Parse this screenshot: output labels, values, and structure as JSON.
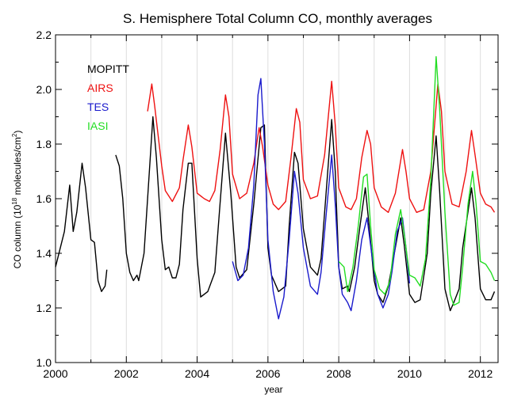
{
  "chart_data": {
    "type": "line",
    "title": "S. Hemisphere Total Column CO, monthly averages",
    "xlabel": "year",
    "ylabel_main": "CO column (10",
    "ylabel_exp": "18",
    "ylabel_mid": " molecules/cm",
    "ylabel_sup2": "2",
    "ylabel_end": ")",
    "xlim": [
      2000,
      2012.5
    ],
    "ylim": [
      1.0,
      2.2
    ],
    "x_ticks": [
      2000,
      2002,
      2004,
      2006,
      2008,
      2010,
      2012
    ],
    "x_tick_labels": [
      "2000",
      "2002",
      "2004",
      "2006",
      "2008",
      "2010",
      "2012"
    ],
    "y_ticks": [
      1.0,
      1.2,
      1.4,
      1.6,
      1.8,
      2.0,
      2.2
    ],
    "y_tick_labels": [
      "1.0",
      "1.2",
      "1.4",
      "1.6",
      "1.8",
      "2.0",
      "2.2"
    ],
    "vertical_year_lines": true,
    "legend_position": "top-left",
    "series": [
      {
        "name": "MOPITT",
        "color": "#000000",
        "segments": [
          [
            [
              2000.0,
              1.35
            ],
            [
              2000.25,
              1.48
            ],
            [
              2000.4,
              1.65
            ],
            [
              2000.5,
              1.48
            ],
            [
              2000.6,
              1.55
            ],
            [
              2000.75,
              1.73
            ],
            [
              2000.85,
              1.64
            ],
            [
              2001.0,
              1.45
            ],
            [
              2001.1,
              1.44
            ],
            [
              2001.2,
              1.3
            ],
            [
              2001.3,
              1.26
            ],
            [
              2001.4,
              1.28
            ],
            [
              2001.45,
              1.34
            ]
          ],
          [
            [
              2001.7,
              1.76
            ],
            [
              2001.8,
              1.72
            ],
            [
              2001.9,
              1.6
            ],
            [
              2002.0,
              1.4
            ],
            [
              2002.1,
              1.33
            ],
            [
              2002.2,
              1.3
            ],
            [
              2002.3,
              1.32
            ],
            [
              2002.35,
              1.3
            ],
            [
              2002.5,
              1.4
            ],
            [
              2002.6,
              1.6
            ],
            [
              2002.75,
              1.9
            ],
            [
              2002.85,
              1.75
            ],
            [
              2003.0,
              1.45
            ],
            [
              2003.1,
              1.34
            ],
            [
              2003.2,
              1.35
            ],
            [
              2003.3,
              1.31
            ],
            [
              2003.4,
              1.31
            ],
            [
              2003.5,
              1.36
            ],
            [
              2003.6,
              1.56
            ],
            [
              2003.75,
              1.73
            ],
            [
              2003.85,
              1.73
            ],
            [
              2004.0,
              1.38
            ],
            [
              2004.1,
              1.24
            ],
            [
              2004.3,
              1.26
            ],
            [
              2004.5,
              1.33
            ],
            [
              2004.6,
              1.5
            ],
            [
              2004.8,
              1.84
            ],
            [
              2004.95,
              1.62
            ],
            [
              2005.1,
              1.35
            ],
            [
              2005.2,
              1.31
            ],
            [
              2005.4,
              1.34
            ],
            [
              2005.6,
              1.58
            ],
            [
              2005.8,
              1.86
            ],
            [
              2005.9,
              1.87
            ],
            [
              2006.0,
              1.42
            ],
            [
              2006.1,
              1.32
            ],
            [
              2006.3,
              1.26
            ],
            [
              2006.5,
              1.28
            ],
            [
              2006.6,
              1.5
            ],
            [
              2006.75,
              1.77
            ],
            [
              2006.85,
              1.73
            ],
            [
              2007.0,
              1.49
            ],
            [
              2007.2,
              1.35
            ],
            [
              2007.4,
              1.32
            ],
            [
              2007.5,
              1.38
            ],
            [
              2007.6,
              1.55
            ],
            [
              2007.8,
              1.89
            ],
            [
              2007.9,
              1.7
            ],
            [
              2008.0,
              1.35
            ],
            [
              2008.1,
              1.27
            ],
            [
              2008.25,
              1.28
            ],
            [
              2008.3,
              1.26
            ],
            [
              2008.45,
              1.35
            ],
            [
              2008.6,
              1.5
            ],
            [
              2008.75,
              1.64
            ],
            [
              2008.85,
              1.51
            ],
            [
              2009.0,
              1.3
            ],
            [
              2009.1,
              1.25
            ],
            [
              2009.25,
              1.22
            ],
            [
              2009.4,
              1.28
            ],
            [
              2009.5,
              1.35
            ],
            [
              2009.75,
              1.53
            ],
            [
              2009.85,
              1.43
            ],
            [
              2010.0,
              1.25
            ],
            [
              2010.15,
              1.22
            ],
            [
              2010.3,
              1.23
            ],
            [
              2010.5,
              1.4
            ],
            [
              2010.6,
              1.62
            ],
            [
              2010.75,
              1.83
            ],
            [
              2010.85,
              1.63
            ],
            [
              2011.0,
              1.27
            ],
            [
              2011.15,
              1.19
            ],
            [
              2011.25,
              1.22
            ],
            [
              2011.4,
              1.27
            ],
            [
              2011.5,
              1.42
            ],
            [
              2011.75,
              1.64
            ],
            [
              2011.85,
              1.53
            ],
            [
              2012.0,
              1.27
            ],
            [
              2012.15,
              1.23
            ],
            [
              2012.3,
              1.23
            ],
            [
              2012.4,
              1.26
            ]
          ]
        ]
      },
      {
        "name": "AIRS",
        "color": "#ee1111",
        "segments": [
          [
            [
              2002.6,
              1.92
            ],
            [
              2002.72,
              2.02
            ],
            [
              2002.8,
              1.94
            ],
            [
              2003.0,
              1.72
            ],
            [
              2003.1,
              1.63
            ],
            [
              2003.3,
              1.59
            ],
            [
              2003.5,
              1.64
            ],
            [
              2003.6,
              1.74
            ],
            [
              2003.75,
              1.87
            ],
            [
              2003.85,
              1.79
            ],
            [
              2004.0,
              1.62
            ],
            [
              2004.2,
              1.6
            ],
            [
              2004.35,
              1.59
            ],
            [
              2004.5,
              1.63
            ],
            [
              2004.65,
              1.78
            ],
            [
              2004.8,
              1.98
            ],
            [
              2004.9,
              1.9
            ],
            [
              2005.0,
              1.69
            ],
            [
              2005.2,
              1.6
            ],
            [
              2005.4,
              1.62
            ],
            [
              2005.6,
              1.73
            ],
            [
              2005.75,
              1.86
            ],
            [
              2005.85,
              1.79
            ],
            [
              2006.0,
              1.65
            ],
            [
              2006.15,
              1.58
            ],
            [
              2006.3,
              1.56
            ],
            [
              2006.5,
              1.59
            ],
            [
              2006.65,
              1.75
            ],
            [
              2006.8,
              1.93
            ],
            [
              2006.9,
              1.88
            ],
            [
              2007.0,
              1.67
            ],
            [
              2007.2,
              1.6
            ],
            [
              2007.4,
              1.61
            ],
            [
              2007.6,
              1.76
            ],
            [
              2007.8,
              2.03
            ],
            [
              2007.9,
              1.87
            ],
            [
              2008.0,
              1.64
            ],
            [
              2008.2,
              1.57
            ],
            [
              2008.35,
              1.56
            ],
            [
              2008.5,
              1.6
            ],
            [
              2008.65,
              1.75
            ],
            [
              2008.8,
              1.85
            ],
            [
              2008.9,
              1.8
            ],
            [
              2009.0,
              1.64
            ],
            [
              2009.2,
              1.57
            ],
            [
              2009.4,
              1.55
            ],
            [
              2009.6,
              1.62
            ],
            [
              2009.8,
              1.78
            ],
            [
              2009.9,
              1.7
            ],
            [
              2010.0,
              1.6
            ],
            [
              2010.2,
              1.55
            ],
            [
              2010.4,
              1.56
            ],
            [
              2010.6,
              1.7
            ],
            [
              2010.8,
              2.02
            ],
            [
              2010.9,
              1.92
            ],
            [
              2011.0,
              1.7
            ],
            [
              2011.2,
              1.58
            ],
            [
              2011.4,
              1.57
            ],
            [
              2011.6,
              1.7
            ],
            [
              2011.75,
              1.85
            ],
            [
              2011.85,
              1.76
            ],
            [
              2012.0,
              1.62
            ],
            [
              2012.15,
              1.58
            ],
            [
              2012.3,
              1.57
            ],
            [
              2012.4,
              1.55
            ]
          ]
        ]
      },
      {
        "name": "TES",
        "color": "#1a1acc",
        "segments": [
          [
            [
              2005.0,
              1.37
            ],
            [
              2005.15,
              1.3
            ],
            [
              2005.3,
              1.32
            ],
            [
              2005.45,
              1.42
            ],
            [
              2005.6,
              1.65
            ],
            [
              2005.72,
              1.98
            ],
            [
              2005.8,
              2.04
            ],
            [
              2005.9,
              1.8
            ],
            [
              2006.0,
              1.45
            ],
            [
              2006.15,
              1.26
            ],
            [
              2006.3,
              1.16
            ],
            [
              2006.45,
              1.24
            ],
            [
              2006.6,
              1.45
            ],
            [
              2006.75,
              1.7
            ],
            [
              2006.85,
              1.62
            ],
            [
              2007.0,
              1.42
            ],
            [
              2007.2,
              1.28
            ],
            [
              2007.4,
              1.25
            ],
            [
              2007.5,
              1.33
            ],
            [
              2007.65,
              1.55
            ],
            [
              2007.8,
              1.76
            ],
            [
              2007.9,
              1.58
            ],
            [
              2008.0,
              1.35
            ],
            [
              2008.1,
              1.25
            ],
            [
              2008.25,
              1.22
            ],
            [
              2008.35,
              1.19
            ],
            [
              2008.5,
              1.3
            ],
            [
              2008.65,
              1.45
            ],
            [
              2008.8,
              1.53
            ],
            [
              2008.95,
              1.38
            ],
            [
              2009.1,
              1.25
            ],
            [
              2009.25,
              1.2
            ],
            [
              2009.4,
              1.25
            ],
            [
              2009.5,
              1.33
            ],
            [
              2009.65,
              1.48
            ],
            [
              2009.8,
              1.53
            ],
            [
              2009.9,
              1.42
            ],
            [
              2010.0,
              1.29
            ]
          ]
        ]
      },
      {
        "name": "IASI",
        "color": "#22dd22",
        "segments": [
          [
            [
              2008.0,
              1.37
            ],
            [
              2008.15,
              1.35
            ],
            [
              2008.25,
              1.26
            ],
            [
              2008.4,
              1.35
            ],
            [
              2008.55,
              1.5
            ],
            [
              2008.7,
              1.68
            ],
            [
              2008.8,
              1.69
            ],
            [
              2008.9,
              1.5
            ],
            [
              2009.0,
              1.34
            ],
            [
              2009.15,
              1.27
            ],
            [
              2009.3,
              1.25
            ],
            [
              2009.45,
              1.3
            ],
            [
              2009.6,
              1.47
            ],
            [
              2009.75,
              1.56
            ],
            [
              2009.85,
              1.47
            ],
            [
              2010.0,
              1.32
            ],
            [
              2010.15,
              1.31
            ],
            [
              2010.3,
              1.28
            ],
            [
              2010.45,
              1.38
            ],
            [
              2010.6,
              1.67
            ],
            [
              2010.75,
              2.12
            ],
            [
              2010.85,
              1.93
            ],
            [
              2011.0,
              1.55
            ],
            [
              2011.15,
              1.25
            ],
            [
              2011.25,
              1.21
            ],
            [
              2011.4,
              1.22
            ],
            [
              2011.5,
              1.35
            ],
            [
              2011.65,
              1.58
            ],
            [
              2011.78,
              1.7
            ],
            [
              2011.88,
              1.58
            ],
            [
              2012.0,
              1.37
            ],
            [
              2012.15,
              1.36
            ],
            [
              2012.3,
              1.33
            ],
            [
              2012.4,
              1.3
            ]
          ]
        ]
      }
    ]
  }
}
